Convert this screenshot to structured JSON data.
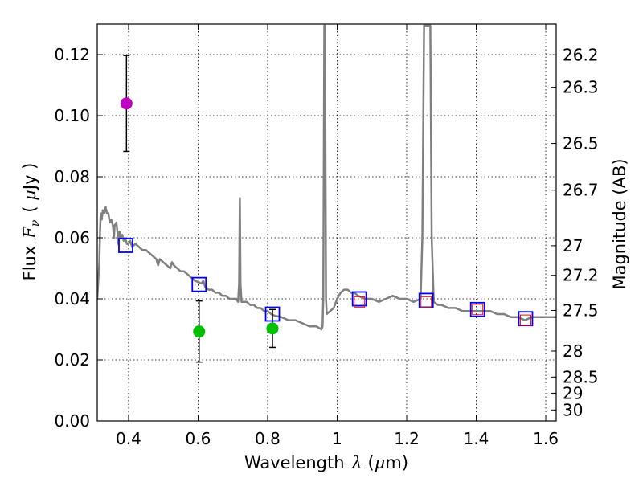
{
  "chart_data": {
    "type": "scatter",
    "title": "",
    "xlabel": "Wavelength",
    "xlabel_symbol": "λ",
    "xlabel_unit_open": " (",
    "xlabel_unit_mu": "μ",
    "xlabel_unit_rest": "m)",
    "ylabel": "Flux",
    "ylabel_symbol": "F",
    "ylabel_subscript": "ν",
    "ylabel_unit_open": "( ",
    "ylabel_unit_mu": "μ",
    "ylabel_unit_rest": "Jy )",
    "ylabel_right": "Magnitude (AB)",
    "xlim": [
      0.31,
      1.63
    ],
    "ylim": [
      0.0,
      0.13
    ],
    "grid": true,
    "x_ticks": [
      0.4,
      0.6,
      0.8,
      1.0,
      1.2,
      1.4,
      1.6
    ],
    "x_tick_labels": [
      "0.4",
      "0.6",
      "0.8",
      "1",
      "1.2",
      "1.4",
      "1.6"
    ],
    "y_ticks": [
      0.0,
      0.02,
      0.04,
      0.06,
      0.08,
      0.1,
      0.12
    ],
    "y_tick_labels": [
      "0.00",
      "0.02",
      "0.04",
      "0.06",
      "0.08",
      "0.10",
      "0.12"
    ],
    "right_ticks": [
      {
        "label": "26.2",
        "flux": 0.1199
      },
      {
        "label": "26.3",
        "flux": 0.1093
      },
      {
        "label": "26.5",
        "flux": 0.0909
      },
      {
        "label": "26.7",
        "flux": 0.0756
      },
      {
        "label": "27",
        "flux": 0.0574
      },
      {
        "label": "27.2",
        "flux": 0.0477
      },
      {
        "label": "27.5",
        "flux": 0.0362
      },
      {
        "label": "28",
        "flux": 0.0229
      },
      {
        "label": "28.5",
        "flux": 0.0144
      },
      {
        "label": "29",
        "flux": 0.0091
      },
      {
        "label": "30",
        "flux": 0.0036
      }
    ],
    "series": [
      {
        "name": "model SED",
        "kind": "line",
        "color": "#808080",
        "points": [
          [
            0.31,
            0.04
          ],
          [
            0.313,
            0.046
          ],
          [
            0.316,
            0.052
          ],
          [
            0.318,
            0.062
          ],
          [
            0.32,
            0.068
          ],
          [
            0.323,
            0.066
          ],
          [
            0.326,
            0.069
          ],
          [
            0.33,
            0.068
          ],
          [
            0.334,
            0.07
          ],
          [
            0.338,
            0.068
          ],
          [
            0.342,
            0.068
          ],
          [
            0.346,
            0.065
          ],
          [
            0.35,
            0.066
          ],
          [
            0.355,
            0.064
          ],
          [
            0.358,
            0.06
          ],
          [
            0.36,
            0.064
          ],
          [
            0.365,
            0.065
          ],
          [
            0.368,
            0.062
          ],
          [
            0.37,
            0.058
          ],
          [
            0.374,
            0.062
          ],
          [
            0.378,
            0.06
          ],
          [
            0.382,
            0.061
          ],
          [
            0.386,
            0.059
          ],
          [
            0.39,
            0.06
          ],
          [
            0.395,
            0.058
          ],
          [
            0.4,
            0.058
          ],
          [
            0.405,
            0.059
          ],
          [
            0.41,
            0.057
          ],
          [
            0.42,
            0.058
          ],
          [
            0.43,
            0.057
          ],
          [
            0.44,
            0.056
          ],
          [
            0.45,
            0.056
          ],
          [
            0.46,
            0.055
          ],
          [
            0.47,
            0.054
          ],
          [
            0.48,
            0.053
          ],
          [
            0.485,
            0.051
          ],
          [
            0.49,
            0.053
          ],
          [
            0.5,
            0.052
          ],
          [
            0.51,
            0.051
          ],
          [
            0.52,
            0.05
          ],
          [
            0.525,
            0.052
          ],
          [
            0.53,
            0.051
          ],
          [
            0.54,
            0.05
          ],
          [
            0.55,
            0.049
          ],
          [
            0.56,
            0.049
          ],
          [
            0.57,
            0.048
          ],
          [
            0.58,
            0.047
          ],
          [
            0.59,
            0.046
          ],
          [
            0.6,
            0.0455
          ],
          [
            0.61,
            0.045
          ],
          [
            0.615,
            0.046
          ],
          [
            0.62,
            0.044
          ],
          [
            0.63,
            0.043
          ],
          [
            0.64,
            0.043
          ],
          [
            0.65,
            0.042
          ],
          [
            0.66,
            0.042
          ],
          [
            0.67,
            0.041
          ],
          [
            0.68,
            0.041
          ],
          [
            0.69,
            0.04
          ],
          [
            0.7,
            0.04
          ],
          [
            0.71,
            0.04
          ],
          [
            0.715,
            0.039
          ],
          [
            0.718,
            0.045
          ],
          [
            0.72,
            0.073
          ],
          [
            0.722,
            0.045
          ],
          [
            0.725,
            0.039
          ],
          [
            0.73,
            0.039
          ],
          [
            0.74,
            0.039
          ],
          [
            0.75,
            0.038
          ],
          [
            0.76,
            0.038
          ],
          [
            0.77,
            0.037
          ],
          [
            0.78,
            0.037
          ],
          [
            0.79,
            0.036
          ],
          [
            0.8,
            0.036
          ],
          [
            0.81,
            0.035
          ],
          [
            0.82,
            0.0345
          ],
          [
            0.84,
            0.034
          ],
          [
            0.86,
            0.033
          ],
          [
            0.88,
            0.033
          ],
          [
            0.9,
            0.032
          ],
          [
            0.92,
            0.031
          ],
          [
            0.94,
            0.031
          ],
          [
            0.955,
            0.03
          ],
          [
            0.958,
            0.031
          ],
          [
            0.96,
            0.04
          ],
          [
            0.962,
            0.095
          ],
          [
            0.963,
            0.1295
          ],
          [
            0.965,
            0.1295
          ],
          [
            0.966,
            0.095
          ],
          [
            0.968,
            0.04
          ],
          [
            0.97,
            0.035
          ],
          [
            0.98,
            0.036
          ],
          [
            0.99,
            0.037
          ],
          [
            1.0,
            0.04
          ],
          [
            1.01,
            0.042
          ],
          [
            1.02,
            0.043
          ],
          [
            1.03,
            0.043
          ],
          [
            1.04,
            0.042
          ],
          [
            1.05,
            0.042
          ],
          [
            1.06,
            0.041
          ],
          [
            1.08,
            0.04
          ],
          [
            1.1,
            0.04
          ],
          [
            1.12,
            0.039
          ],
          [
            1.14,
            0.04
          ],
          [
            1.16,
            0.041
          ],
          [
            1.18,
            0.04
          ],
          [
            1.2,
            0.04
          ],
          [
            1.22,
            0.039
          ],
          [
            1.24,
            0.04
          ],
          [
            1.245,
            0.06
          ],
          [
            1.25,
            0.1295
          ],
          [
            1.268,
            0.1295
          ],
          [
            1.272,
            0.06
          ],
          [
            1.278,
            0.039
          ],
          [
            1.29,
            0.038
          ],
          [
            1.3,
            0.038
          ],
          [
            1.32,
            0.037
          ],
          [
            1.34,
            0.037
          ],
          [
            1.36,
            0.036
          ],
          [
            1.38,
            0.036
          ],
          [
            1.4,
            0.036
          ],
          [
            1.42,
            0.036
          ],
          [
            1.44,
            0.036
          ],
          [
            1.46,
            0.035
          ],
          [
            1.48,
            0.035
          ],
          [
            1.5,
            0.034
          ],
          [
            1.52,
            0.034
          ],
          [
            1.54,
            0.033
          ],
          [
            1.56,
            0.034
          ],
          [
            1.58,
            0.034
          ],
          [
            1.6,
            0.034
          ],
          [
            1.63,
            0.034
          ]
        ]
      },
      {
        "name": "observed (magenta)",
        "kind": "errorbar",
        "color": "#bf00bf",
        "points": [
          {
            "x": 0.394,
            "y": 0.104,
            "err": 0.0157
          }
        ]
      },
      {
        "name": "observed (green)",
        "kind": "errorbar",
        "color": "#00bf00",
        "points": [
          {
            "x": 0.603,
            "y": 0.0293,
            "err": 0.01
          },
          {
            "x": 0.814,
            "y": 0.0303,
            "err": 0.0062
          }
        ]
      },
      {
        "name": "model photometry",
        "kind": "square",
        "color": "#0000ff",
        "points": [
          [
            0.392,
            0.0575
          ],
          [
            0.603,
            0.0447
          ],
          [
            0.814,
            0.035
          ],
          [
            1.064,
            0.04
          ],
          [
            1.256,
            0.0395
          ],
          [
            1.404,
            0.0365
          ],
          [
            1.542,
            0.0335
          ]
        ]
      },
      {
        "name": "predicted (red)",
        "kind": "square_small",
        "color": "#ff0000",
        "points": [
          [
            1.064,
            0.039
          ],
          [
            1.256,
            0.039
          ],
          [
            1.404,
            0.0365
          ],
          [
            1.542,
            0.033
          ]
        ]
      }
    ]
  }
}
